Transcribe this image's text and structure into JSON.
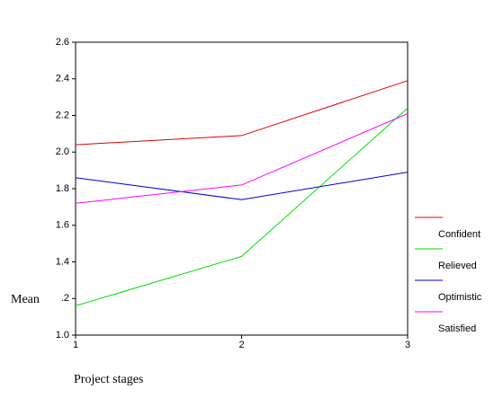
{
  "chart_data": {
    "type": "line",
    "x_label": "Project stages",
    "y_label": "Mean",
    "x": [
      1,
      2,
      3
    ],
    "xlim": [
      1,
      3
    ],
    "xticks": [
      1,
      2,
      3
    ],
    "ylim": [
      1.0,
      2.6
    ],
    "yticks": [
      {
        "value": 1,
        "label": "1.0"
      },
      {
        "value": 1.2,
        "label": ".2"
      },
      1.4,
      1.6,
      1.8,
      {
        "value": 2,
        "label": "2.0"
      },
      2.2,
      2.4,
      2.6
    ],
    "legend": "right",
    "series": [
      {
        "name": "Confident",
        "color": "#e00000",
        "values": [
          2.04,
          2.09,
          2.39
        ]
      },
      {
        "name": "Relieved",
        "color": "#00dd00",
        "values": [
          1.16,
          1.43,
          2.24
        ]
      },
      {
        "name": "Optimistic",
        "color": "#0000cc",
        "values": [
          1.86,
          1.74,
          1.89
        ]
      },
      {
        "name": "Satisfied",
        "color": "#ff00ff",
        "values": [
          1.72,
          1.82,
          2.21
        ]
      }
    ]
  }
}
